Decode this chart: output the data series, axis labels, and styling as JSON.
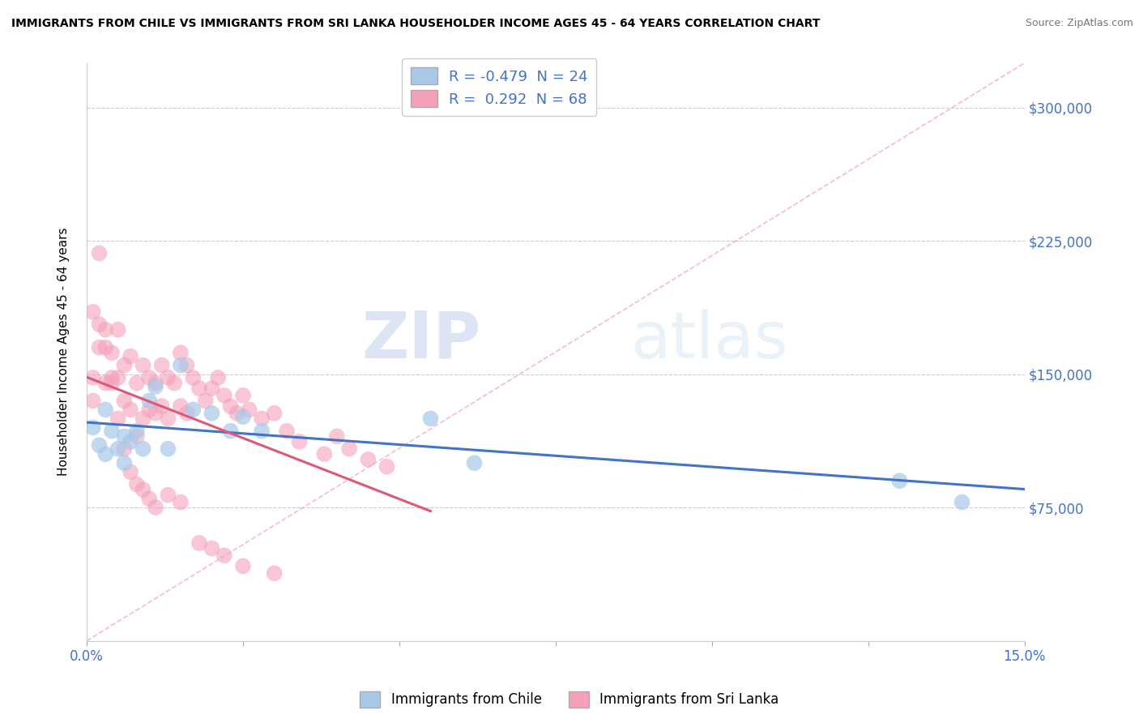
{
  "title": "IMMIGRANTS FROM CHILE VS IMMIGRANTS FROM SRI LANKA HOUSEHOLDER INCOME AGES 45 - 64 YEARS CORRELATION CHART",
  "source": "Source: ZipAtlas.com",
  "ylabel": "Householder Income Ages 45 - 64 years",
  "xlim": [
    0.0,
    0.15
  ],
  "ylim": [
    0,
    325000
  ],
  "xticks": [
    0.0,
    0.025,
    0.05,
    0.075,
    0.1,
    0.125,
    0.15
  ],
  "xticklabels": [
    "0.0%",
    "",
    "",
    "",
    "",
    "",
    "15.0%"
  ],
  "yticks": [
    0,
    75000,
    150000,
    225000,
    300000
  ],
  "right_yticklabels": [
    "",
    "$75,000",
    "$150,000",
    "$225,000",
    "$300,000"
  ],
  "legend_chile": "R = -0.479  N = 24",
  "legend_sri_lanka": "R =  0.292  N = 68",
  "color_chile": "#a8c8e8",
  "color_sri_lanka": "#f4a0b8",
  "color_trend_chile": "#4472C4",
  "color_trend_sri_lanka": "#e05878",
  "color_diagonal": "#f0a0b0",
  "watermark_zip": "ZIP",
  "watermark_atlas": "atlas",
  "chile_x": [
    0.001,
    0.002,
    0.003,
    0.003,
    0.004,
    0.005,
    0.006,
    0.006,
    0.007,
    0.008,
    0.009,
    0.01,
    0.011,
    0.013,
    0.015,
    0.017,
    0.02,
    0.023,
    0.025,
    0.028,
    0.055,
    0.062,
    0.13,
    0.14
  ],
  "chile_y": [
    120000,
    110000,
    130000,
    105000,
    118000,
    108000,
    115000,
    100000,
    112000,
    118000,
    108000,
    135000,
    143000,
    108000,
    155000,
    130000,
    128000,
    118000,
    126000,
    118000,
    125000,
    100000,
    90000,
    78000
  ],
  "sri_lanka_x": [
    0.001,
    0.001,
    0.002,
    0.002,
    0.003,
    0.003,
    0.004,
    0.004,
    0.005,
    0.005,
    0.006,
    0.006,
    0.007,
    0.007,
    0.008,
    0.008,
    0.009,
    0.009,
    0.01,
    0.01,
    0.011,
    0.011,
    0.012,
    0.012,
    0.013,
    0.013,
    0.014,
    0.015,
    0.015,
    0.016,
    0.016,
    0.017,
    0.018,
    0.019,
    0.02,
    0.021,
    0.022,
    0.023,
    0.024,
    0.025,
    0.026,
    0.028,
    0.03,
    0.032,
    0.034,
    0.038,
    0.04,
    0.042,
    0.045,
    0.048,
    0.001,
    0.002,
    0.003,
    0.004,
    0.005,
    0.006,
    0.007,
    0.008,
    0.009,
    0.01,
    0.011,
    0.013,
    0.015,
    0.018,
    0.02,
    0.022,
    0.025,
    0.03
  ],
  "sri_lanka_y": [
    148000,
    135000,
    218000,
    165000,
    175000,
    145000,
    162000,
    148000,
    175000,
    148000,
    155000,
    135000,
    160000,
    130000,
    145000,
    115000,
    155000,
    125000,
    148000,
    130000,
    145000,
    128000,
    155000,
    132000,
    148000,
    125000,
    145000,
    162000,
    132000,
    155000,
    128000,
    148000,
    142000,
    135000,
    142000,
    148000,
    138000,
    132000,
    128000,
    138000,
    130000,
    125000,
    128000,
    118000,
    112000,
    105000,
    115000,
    108000,
    102000,
    98000,
    185000,
    178000,
    165000,
    145000,
    125000,
    108000,
    95000,
    88000,
    85000,
    80000,
    75000,
    82000,
    78000,
    55000,
    52000,
    48000,
    42000,
    38000
  ]
}
